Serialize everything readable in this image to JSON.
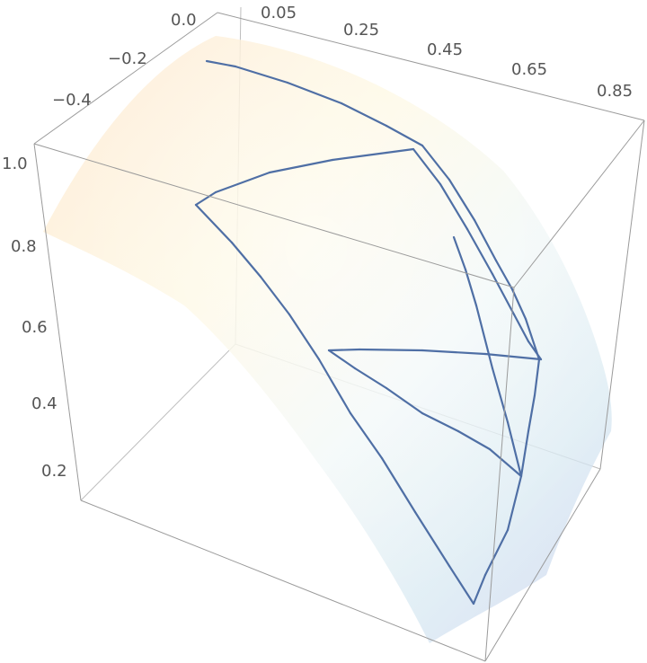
{
  "chart_data": {
    "type": "surface3d",
    "title": "",
    "axes": {
      "x": {
        "label": "",
        "ticks": [
          "0.05",
          "0.25",
          "0.45",
          "0.65",
          "0.85"
        ]
      },
      "y": {
        "label": "",
        "ticks": [
          "0.0",
          "−0.2",
          "−0.4"
        ]
      },
      "z": {
        "label": "",
        "ticks": [
          "1.0",
          "0.8",
          "0.6",
          "0.4",
          "0.2"
        ]
      }
    },
    "surface": {
      "colormap": [
        "#fde2c6",
        "#fef6d9",
        "#eef6f6",
        "#d8e9f2",
        "#c9d0ef"
      ]
    },
    "curve": {
      "color": "#4f6fa5",
      "note": "",
      "points": [
        [
          230,
          68
        ],
        [
          262,
          74
        ],
        [
          320,
          92
        ],
        [
          380,
          115
        ],
        [
          430,
          140
        ],
        [
          470,
          162
        ],
        [
          500,
          200
        ],
        [
          528,
          245
        ],
        [
          552,
          290
        ],
        [
          570,
          322
        ],
        [
          585,
          355
        ],
        [
          600,
          400
        ],
        [
          595,
          440
        ],
        [
          588,
          480
        ],
        [
          580,
          530
        ],
        [
          565,
          590
        ],
        [
          540,
          640
        ],
        [
          527,
          672
        ],
        [
          500,
          630
        ],
        [
          462,
          570
        ],
        [
          425,
          510
        ],
        [
          390,
          460
        ],
        [
          355,
          400
        ],
        [
          322,
          350
        ],
        [
          290,
          308
        ],
        [
          258,
          270
        ],
        [
          218,
          228
        ],
        [
          240,
          214
        ],
        [
          300,
          192
        ],
        [
          370,
          178
        ],
        [
          430,
          170
        ],
        [
          460,
          166
        ],
        [
          490,
          205
        ],
        [
          520,
          255
        ],
        [
          548,
          305
        ],
        [
          572,
          350
        ],
        [
          588,
          380
        ],
        [
          602,
          400
        ],
        [
          540,
          394
        ],
        [
          470,
          390
        ],
        [
          400,
          389
        ],
        [
          366,
          390
        ],
        [
          395,
          410
        ],
        [
          430,
          432
        ],
        [
          470,
          460
        ],
        [
          510,
          480
        ],
        [
          545,
          500
        ],
        [
          580,
          530
        ],
        [
          565,
          470
        ],
        [
          548,
          410
        ],
        [
          530,
          340
        ],
        [
          518,
          300
        ],
        [
          505,
          264
        ]
      ]
    }
  }
}
